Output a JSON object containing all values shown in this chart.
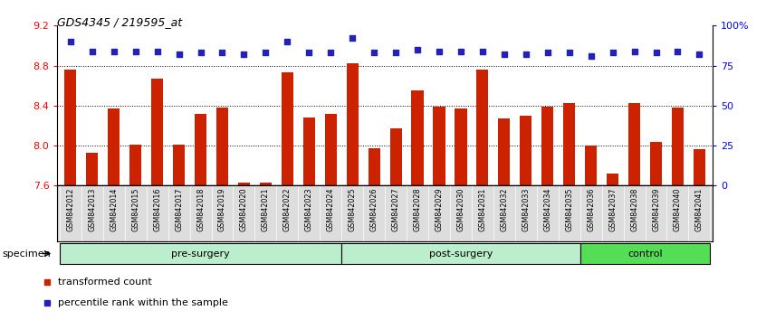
{
  "title": "GDS4345 / 219595_at",
  "categories": [
    "GSM842012",
    "GSM842013",
    "GSM842014",
    "GSM842015",
    "GSM842016",
    "GSM842017",
    "GSM842018",
    "GSM842019",
    "GSM842020",
    "GSM842021",
    "GSM842022",
    "GSM842023",
    "GSM842024",
    "GSM842025",
    "GSM842026",
    "GSM842027",
    "GSM842028",
    "GSM842029",
    "GSM842030",
    "GSM842031",
    "GSM842032",
    "GSM842033",
    "GSM842034",
    "GSM842035",
    "GSM842036",
    "GSM842037",
    "GSM842038",
    "GSM842039",
    "GSM842040",
    "GSM842041"
  ],
  "bar_values": [
    8.76,
    7.93,
    8.37,
    8.01,
    8.67,
    8.01,
    8.32,
    8.38,
    7.63,
    7.63,
    8.73,
    8.28,
    8.32,
    8.82,
    7.97,
    8.17,
    8.55,
    8.39,
    8.37,
    8.76,
    8.27,
    8.3,
    8.39,
    8.43,
    8.0,
    7.72,
    8.43,
    8.04,
    8.38,
    7.96
  ],
  "percentile_values": [
    90,
    84,
    84,
    84,
    84,
    82,
    83,
    83,
    82,
    83,
    90,
    83,
    83,
    92,
    83,
    83,
    85,
    84,
    84,
    84,
    82,
    82,
    83,
    83,
    81,
    83,
    84,
    83,
    84,
    82
  ],
  "bar_color": "#cc2200",
  "dot_color": "#2222bb",
  "ymin": 7.6,
  "ymax": 9.2,
  "ylim_right": [
    0,
    100
  ],
  "yticks_left": [
    7.6,
    8.0,
    8.4,
    8.8,
    9.2
  ],
  "yticks_right": [
    0,
    25,
    50,
    75,
    100
  ],
  "ytick_labels_right": [
    "0",
    "25",
    "50",
    "75",
    "100%"
  ],
  "grid_values": [
    8.0,
    8.4,
    8.8
  ],
  "groups": [
    {
      "label": "pre-surgery",
      "start": 0,
      "end": 13,
      "color": "#bbeecc"
    },
    {
      "label": "post-surgery",
      "start": 13,
      "end": 24,
      "color": "#bbeecc"
    },
    {
      "label": "control",
      "start": 24,
      "end": 30,
      "color": "#55dd55"
    }
  ],
  "specimen_label": "specimen",
  "background_color": "#ffffff",
  "bar_width": 0.55,
  "xtick_bg": "#dddddd"
}
